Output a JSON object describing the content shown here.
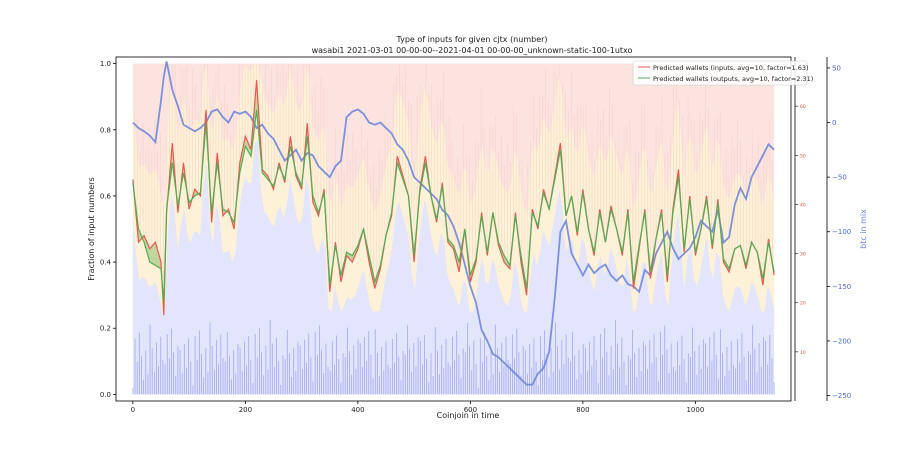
{
  "chart_data": {
    "type": "line",
    "title": "Type of inputs for given cjtx (number)",
    "subtitle": "wasabi1 2021-03-01 00-00-00--2021-04-01 00-00-00_unknown-static-100-1utxo",
    "xlabel": "Coinjoin in time",
    "ylabel": "Fraction of input numbers",
    "y2label": "btc in mix",
    "xlim": [
      -30,
      1170
    ],
    "ylim": [
      -0.02,
      1.02
    ],
    "y2lim": [
      -255,
      60
    ],
    "y3lim": [
      0,
      70
    ],
    "x_ticks": [
      0,
      200,
      400,
      600,
      800,
      1000
    ],
    "y_ticks": [
      0.0,
      0.2,
      0.4,
      0.6,
      0.8,
      1.0
    ],
    "y2_ticks": [
      50,
      0,
      -50,
      -100,
      -150,
      -200,
      -250
    ],
    "y3_ticks": [
      10,
      20,
      30,
      40,
      50,
      60
    ],
    "n_coinjoins": 1141,
    "legend_position": "top-right",
    "grid": false,
    "legend": [
      {
        "label": "Predicted wallets (inputs, avg=10, factor=1.63)",
        "color": "#e8584f"
      },
      {
        "label": "Predicted wallets (outputs, avg=10, factor=2.31)",
        "color": "#4fae55"
      }
    ],
    "series": [
      {
        "name": "Predicted wallets (inputs, avg=10, factor=1.63)",
        "axis": "fraction",
        "color": "#e8584f",
        "x": [
          0,
          10,
          20,
          30,
          40,
          50,
          55,
          60,
          70,
          80,
          90,
          100,
          110,
          120,
          130,
          140,
          150,
          160,
          170,
          180,
          190,
          200,
          210,
          220,
          230,
          240,
          250,
          260,
          270,
          280,
          290,
          300,
          310,
          320,
          330,
          340,
          350,
          360,
          370,
          380,
          390,
          400,
          410,
          420,
          430,
          440,
          450,
          460,
          470,
          480,
          490,
          500,
          510,
          520,
          530,
          540,
          550,
          560,
          570,
          580,
          590,
          600,
          610,
          620,
          630,
          640,
          650,
          660,
          670,
          680,
          690,
          700,
          710,
          720,
          730,
          740,
          750,
          760,
          770,
          780,
          790,
          800,
          810,
          820,
          830,
          840,
          850,
          860,
          870,
          880,
          890,
          900,
          910,
          920,
          930,
          940,
          950,
          960,
          970,
          980,
          990,
          1000,
          1010,
          1020,
          1030,
          1040,
          1050,
          1060,
          1070,
          1080,
          1090,
          1100,
          1110,
          1120,
          1130,
          1140
        ],
        "values": [
          0.65,
          0.46,
          0.48,
          0.44,
          0.46,
          0.4,
          0.24,
          0.55,
          0.76,
          0.55,
          0.7,
          0.56,
          0.62,
          0.6,
          0.86,
          0.52,
          0.73,
          0.54,
          0.56,
          0.5,
          0.7,
          0.78,
          0.74,
          0.95,
          0.68,
          0.66,
          0.62,
          0.7,
          0.64,
          0.78,
          0.66,
          0.62,
          0.82,
          0.58,
          0.54,
          0.62,
          0.31,
          0.46,
          0.34,
          0.42,
          0.4,
          0.44,
          0.5,
          0.4,
          0.32,
          0.38,
          0.48,
          0.54,
          0.72,
          0.66,
          0.6,
          0.4,
          0.62,
          0.72,
          0.6,
          0.52,
          0.64,
          0.46,
          0.44,
          0.37,
          0.5,
          0.34,
          0.4,
          0.55,
          0.42,
          0.55,
          0.45,
          0.4,
          0.38,
          0.55,
          0.4,
          0.3,
          0.56,
          0.5,
          0.62,
          0.56,
          0.66,
          0.76,
          0.54,
          0.6,
          0.48,
          0.62,
          0.5,
          0.42,
          0.56,
          0.46,
          0.57,
          0.5,
          0.42,
          0.56,
          0.32,
          0.44,
          0.56,
          0.35,
          0.47,
          0.56,
          0.34,
          0.56,
          0.68,
          0.43,
          0.6,
          0.42,
          0.5,
          0.6,
          0.44,
          0.59,
          0.4,
          0.37,
          0.44,
          0.45,
          0.38,
          0.46,
          0.43,
          0.33,
          0.47,
          0.36
        ]
      },
      {
        "name": "Predicted wallets (outputs, avg=10, factor=2.31)",
        "axis": "fraction",
        "color": "#4fae55",
        "x": [
          0,
          10,
          20,
          30,
          40,
          50,
          55,
          60,
          70,
          80,
          90,
          100,
          110,
          120,
          130,
          140,
          150,
          160,
          170,
          180,
          190,
          200,
          210,
          220,
          230,
          240,
          250,
          260,
          270,
          280,
          290,
          300,
          310,
          320,
          330,
          340,
          350,
          360,
          370,
          380,
          390,
          400,
          410,
          420,
          430,
          440,
          450,
          460,
          470,
          480,
          490,
          500,
          510,
          520,
          530,
          540,
          550,
          560,
          570,
          580,
          590,
          600,
          610,
          620,
          630,
          640,
          650,
          660,
          670,
          680,
          690,
          700,
          710,
          720,
          730,
          740,
          750,
          760,
          770,
          780,
          790,
          800,
          810,
          820,
          830,
          840,
          850,
          860,
          870,
          880,
          890,
          900,
          910,
          920,
          930,
          940,
          950,
          960,
          970,
          980,
          990,
          1000,
          1010,
          1020,
          1030,
          1040,
          1050,
          1060,
          1070,
          1080,
          1090,
          1100,
          1110,
          1120,
          1130,
          1140
        ],
        "values": [
          0.64,
          0.5,
          0.46,
          0.4,
          0.39,
          0.38,
          0.28,
          0.56,
          0.7,
          0.57,
          0.67,
          0.58,
          0.6,
          0.61,
          0.82,
          0.55,
          0.7,
          0.56,
          0.55,
          0.52,
          0.67,
          0.75,
          0.72,
          0.86,
          0.67,
          0.65,
          0.63,
          0.69,
          0.65,
          0.75,
          0.67,
          0.63,
          0.78,
          0.6,
          0.55,
          0.61,
          0.33,
          0.45,
          0.36,
          0.43,
          0.42,
          0.45,
          0.5,
          0.42,
          0.34,
          0.39,
          0.48,
          0.55,
          0.7,
          0.65,
          0.6,
          0.42,
          0.61,
          0.7,
          0.6,
          0.53,
          0.63,
          0.47,
          0.45,
          0.4,
          0.5,
          0.36,
          0.41,
          0.54,
          0.43,
          0.55,
          0.46,
          0.42,
          0.39,
          0.54,
          0.42,
          0.32,
          0.55,
          0.51,
          0.61,
          0.56,
          0.65,
          0.74,
          0.54,
          0.6,
          0.49,
          0.61,
          0.5,
          0.43,
          0.55,
          0.46,
          0.56,
          0.5,
          0.43,
          0.55,
          0.34,
          0.45,
          0.55,
          0.37,
          0.47,
          0.55,
          0.36,
          0.55,
          0.66,
          0.44,
          0.59,
          0.43,
          0.5,
          0.59,
          0.45,
          0.58,
          0.41,
          0.38,
          0.44,
          0.45,
          0.39,
          0.46,
          0.43,
          0.35,
          0.46,
          0.37
        ]
      },
      {
        "name": "",
        "axis": "btc",
        "color": "#6f86dd",
        "x": [
          0,
          10,
          20,
          30,
          40,
          50,
          55,
          60,
          70,
          80,
          90,
          100,
          110,
          120,
          130,
          140,
          150,
          160,
          170,
          180,
          190,
          200,
          210,
          220,
          230,
          240,
          250,
          260,
          270,
          280,
          290,
          300,
          310,
          320,
          330,
          340,
          350,
          360,
          370,
          380,
          390,
          400,
          410,
          420,
          430,
          440,
          450,
          460,
          470,
          480,
          490,
          500,
          510,
          520,
          530,
          540,
          550,
          560,
          570,
          580,
          590,
          600,
          610,
          620,
          630,
          640,
          650,
          660,
          670,
          680,
          690,
          700,
          710,
          720,
          730,
          740,
          750,
          760,
          770,
          780,
          790,
          800,
          810,
          820,
          830,
          840,
          850,
          860,
          870,
          880,
          890,
          900,
          910,
          920,
          930,
          940,
          950,
          960,
          970,
          980,
          990,
          1000,
          1010,
          1020,
          1030,
          1040,
          1050,
          1060,
          1070,
          1080,
          1090,
          1100,
          1110,
          1120,
          1130,
          1140
        ],
        "values": [
          0,
          -5,
          -8,
          -12,
          -18,
          20,
          42,
          56,
          30,
          15,
          -2,
          -5,
          -8,
          -5,
          0,
          10,
          12,
          5,
          0,
          10,
          8,
          10,
          5,
          -5,
          -2,
          -10,
          -15,
          -25,
          -35,
          -30,
          -25,
          -35,
          -28,
          -30,
          -40,
          -45,
          -50,
          -40,
          -35,
          5,
          10,
          12,
          8,
          0,
          -2,
          0,
          -5,
          -10,
          -20,
          -25,
          -35,
          -50,
          -55,
          -60,
          -65,
          -70,
          -80,
          -85,
          -95,
          -110,
          -130,
          -150,
          -165,
          -190,
          -200,
          -212,
          -215,
          -220,
          -225,
          -230,
          -235,
          -240,
          -240,
          -230,
          -225,
          -210,
          -160,
          -100,
          -90,
          -120,
          -130,
          -140,
          -130,
          -138,
          -133,
          -130,
          -140,
          -145,
          -140,
          -148,
          -150,
          -155,
          -135,
          -140,
          -120,
          -110,
          -100,
          -115,
          -125,
          -120,
          -115,
          -105,
          -90,
          -95,
          -100,
          -80,
          -110,
          -105,
          -75,
          -60,
          -70,
          -50,
          -40,
          -30,
          -20,
          -25
        ]
      }
    ]
  }
}
